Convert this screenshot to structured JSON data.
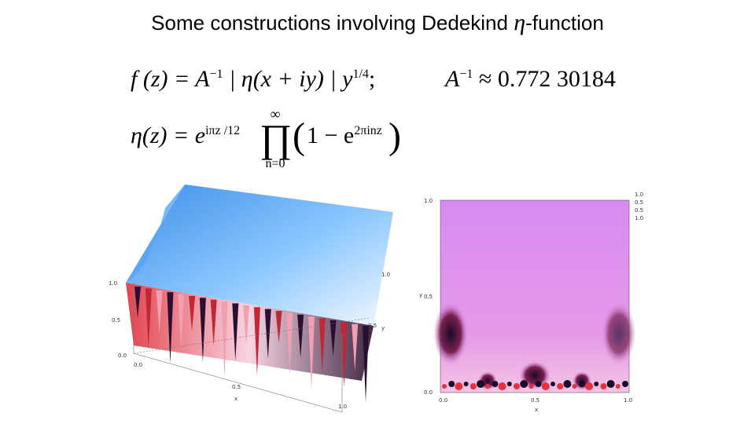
{
  "title": {
    "text": "Some constructions involving Dedekind",
    "eta": "η",
    "suffix": "-function"
  },
  "formulas": {
    "f_lhs": "f (z) = A",
    "f_exp": "−1",
    "f_mid": " | η(x + iy) | y",
    "f_exp2": "1/4",
    "f_end": ";",
    "const_lhs": "A",
    "const_exp": "−1",
    "const_rhs": " ≈ 0.772 30184",
    "eta_lhs": "η(z) = e",
    "eta_exp": "iπz /12",
    "prod_top": "∞",
    "prod_sym": "∏",
    "prod_bottom": "n=0",
    "eta_term": "1 − e",
    "eta_term_exp": "2πinz"
  },
  "plot3d": {
    "z_ticks": [
      "1.0",
      "0.5",
      "0.0"
    ],
    "x_ticks": [
      "0.0",
      "0.5",
      "1.0"
    ],
    "y_ticks": [
      "0.5",
      "1.0"
    ],
    "x_label": "x",
    "y_label": "y",
    "colors": {
      "top": "#6fb6ff",
      "light": "#e8f2ff",
      "red": "#e0303a",
      "dark": "#2a1030"
    }
  },
  "plot2d": {
    "y_ticks": [
      "1.0",
      "0.5",
      "0.0"
    ],
    "x_ticks": [
      "0.0",
      "0.5",
      "1.0"
    ],
    "x_label": "x",
    "y_label": "y",
    "legend": [
      "1.0",
      "0.5",
      "0.5",
      "1.0"
    ],
    "colors": {
      "bg": "#d98cf0",
      "dark": "#1a0a2a",
      "red": "#e83040",
      "white": "#ffffff"
    }
  }
}
